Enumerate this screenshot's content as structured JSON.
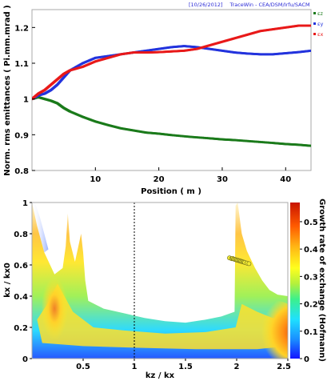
{
  "header": {
    "date": "[10/26/2012]",
    "source": "TraceWin - CEA/DSM/Irfu/SACM"
  },
  "colors": {
    "ez": "#1a7a1a",
    "ey": "#2233dd",
    "ex": "#e81919",
    "frame": "#a9a9a9"
  },
  "chart_data": [
    {
      "type": "line",
      "xlabel": "Position ( m )",
      "ylabel": "Norm. rms emittances ( Pi.mm.mrad )",
      "xlim": [
        0,
        44
      ],
      "ylim": [
        0.8,
        1.25
      ],
      "xticks": [
        10,
        20,
        30,
        40
      ],
      "yticks": [
        0.8,
        0.9,
        1.0,
        1.1,
        1.2
      ],
      "xtick_labels": [
        "10",
        "20",
        "30",
        "40"
      ],
      "ytick_labels": [
        "0.8",
        "0.9",
        "1",
        "1.1",
        "1.2"
      ],
      "legend_position": "top-right, outside plot",
      "grid": false,
      "series": [
        {
          "name": "εz",
          "color": "#1a7a1a",
          "x": [
            0,
            1,
            2,
            3,
            4,
            5,
            6,
            8,
            10,
            12,
            14,
            16,
            18,
            20,
            22,
            25,
            28,
            30,
            32,
            35,
            38,
            40,
            42,
            44
          ],
          "y": [
            1.0,
            1.005,
            1.0,
            0.995,
            0.988,
            0.975,
            0.965,
            0.95,
            0.937,
            0.927,
            0.918,
            0.912,
            0.906,
            0.903,
            0.899,
            0.894,
            0.89,
            0.887,
            0.885,
            0.881,
            0.877,
            0.874,
            0.872,
            0.869
          ]
        },
        {
          "name": "εy",
          "color": "#2233dd",
          "x": [
            0,
            1,
            2,
            3,
            4,
            5,
            6,
            8,
            10,
            12,
            14,
            16,
            18,
            20,
            22,
            24,
            26,
            28,
            30,
            32,
            34,
            36,
            38,
            40,
            42,
            44
          ],
          "y": [
            1.0,
            1.01,
            1.015,
            1.025,
            1.04,
            1.06,
            1.08,
            1.1,
            1.115,
            1.12,
            1.125,
            1.13,
            1.135,
            1.14,
            1.145,
            1.148,
            1.145,
            1.14,
            1.135,
            1.13,
            1.127,
            1.125,
            1.125,
            1.128,
            1.131,
            1.135
          ]
        },
        {
          "name": "εx",
          "color": "#e81919",
          "x": [
            0,
            1,
            2,
            3,
            4,
            5,
            6,
            8,
            10,
            12,
            14,
            16,
            18,
            20,
            22,
            24,
            26,
            28,
            30,
            32,
            34,
            36,
            38,
            40,
            42,
            44
          ],
          "y": [
            1.0,
            1.015,
            1.025,
            1.04,
            1.055,
            1.07,
            1.08,
            1.09,
            1.105,
            1.115,
            1.125,
            1.13,
            1.13,
            1.131,
            1.133,
            1.135,
            1.14,
            1.15,
            1.16,
            1.17,
            1.18,
            1.19,
            1.195,
            1.2,
            1.205,
            1.205
          ]
        }
      ]
    },
    {
      "type": "heatmap",
      "xlabel": "kz / kx",
      "ylabel": "kx / kx0",
      "colorbar_label": "Growth rate of exchange (Hofmann)",
      "xlim": [
        0,
        2.5
      ],
      "ylim": [
        0,
        1
      ],
      "xticks": [
        0.5,
        1,
        1.5,
        2,
        2.5
      ],
      "yticks": [
        0,
        0.2,
        0.4,
        0.6,
        0.8,
        1
      ],
      "xtick_labels": [
        "0.5",
        "1",
        "1.5",
        "2",
        "2.5"
      ],
      "ytick_labels": [
        "0",
        "0.2",
        "0.4",
        "0.6",
        "0.8",
        "1"
      ],
      "colorbar_range": [
        0,
        0.57
      ],
      "colorbar_ticks": [
        0,
        0.1,
        0.2,
        0.3,
        0.4,
        0.5
      ],
      "colorbar_tick_labels": [
        "0",
        "0.1",
        "0.2",
        "0.3",
        "0.4",
        "0.5"
      ],
      "vertical_line_x": 1,
      "markers": {
        "color": "#f2ea32",
        "x": [
          1.93,
          1.95,
          1.96,
          1.97,
          1.98,
          1.99,
          2.0,
          2.01,
          2.02,
          2.03,
          2.04,
          2.05,
          2.06,
          2.07,
          2.08,
          2.1,
          2.12
        ],
        "y": [
          0.645,
          0.64,
          0.642,
          0.638,
          0.636,
          0.634,
          0.632,
          0.63,
          0.628,
          0.626,
          0.624,
          0.622,
          0.62,
          0.618,
          0.616,
          0.612,
          0.608
        ]
      }
    }
  ]
}
